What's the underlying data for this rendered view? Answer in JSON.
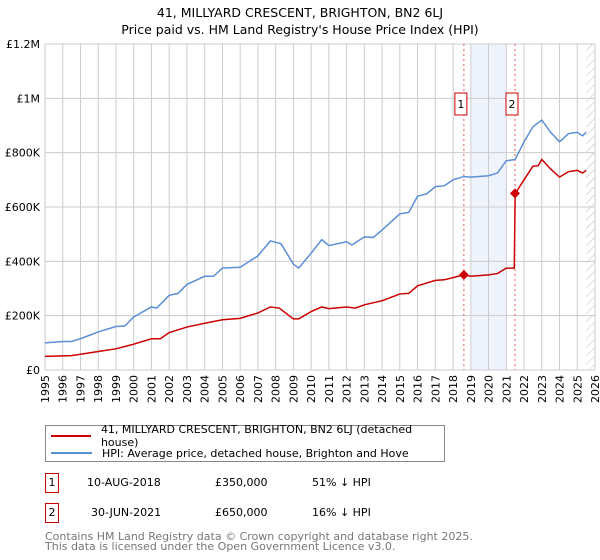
{
  "chart_data": {
    "type": "line",
    "title": "41, MILLYARD CRESCENT, BRIGHTON, BN2 6LJ",
    "subtitle": "Price paid vs. HM Land Registry's House Price Index (HPI)",
    "xlim": [
      1995,
      2026
    ],
    "ylim": [
      0,
      1200000
    ],
    "yticks": [
      {
        "v": 0,
        "label": "£0"
      },
      {
        "v": 200000,
        "label": "£200K"
      },
      {
        "v": 400000,
        "label": "£400K"
      },
      {
        "v": 600000,
        "label": "£600K"
      },
      {
        "v": 800000,
        "label": "£800K"
      },
      {
        "v": 1000000,
        "label": "£1M"
      },
      {
        "v": 1200000,
        "label": "£1.2M"
      }
    ],
    "xticks": [
      "1995",
      "1996",
      "1997",
      "1998",
      "1999",
      "2000",
      "2001",
      "2002",
      "2003",
      "2004",
      "2005",
      "2006",
      "2007",
      "2008",
      "2009",
      "2010",
      "2011",
      "2012",
      "2013",
      "2014",
      "2015",
      "2016",
      "2017",
      "2018",
      "2019",
      "2020",
      "2021",
      "2022",
      "2023",
      "2024",
      "2025",
      "2026"
    ],
    "shaded_range": [
      2019,
      2021
    ],
    "hatched_from": 2025.5,
    "series": [
      {
        "name": "41, MILLYARD CRESCENT, BRIGHTON, BN2 6LJ (detached house)",
        "color": "#cc0000",
        "points": [
          [
            1995,
            50000
          ],
          [
            1996,
            52000
          ],
          [
            1996.5,
            53000
          ],
          [
            1997,
            58000
          ],
          [
            1998,
            68000
          ],
          [
            1999,
            78000
          ],
          [
            2000,
            95000
          ],
          [
            2001,
            115000
          ],
          [
            2001.5,
            115000
          ],
          [
            2002,
            138000
          ],
          [
            2003,
            158000
          ],
          [
            2004,
            172000
          ],
          [
            2005,
            185000
          ],
          [
            2006,
            190000
          ],
          [
            2007,
            210000
          ],
          [
            2007.7,
            232000
          ],
          [
            2008.2,
            228000
          ],
          [
            2009,
            188000
          ],
          [
            2009.3,
            188000
          ],
          [
            2010,
            215000
          ],
          [
            2010.6,
            232000
          ],
          [
            2011,
            226000
          ],
          [
            2012,
            232000
          ],
          [
            2012.5,
            228000
          ],
          [
            2013,
            240000
          ],
          [
            2014,
            255000
          ],
          [
            2015,
            280000
          ],
          [
            2015.5,
            282000
          ],
          [
            2016,
            310000
          ],
          [
            2017,
            330000
          ],
          [
            2017.5,
            332000
          ],
          [
            2018,
            340000
          ],
          [
            2018.6,
            350000
          ],
          [
            2019,
            345000
          ],
          [
            2020,
            350000
          ],
          [
            2020.5,
            355000
          ],
          [
            2021,
            375000
          ],
          [
            2021.45,
            375000
          ],
          [
            2021.5,
            650000
          ],
          [
            2022,
            700000
          ],
          [
            2022.5,
            750000
          ],
          [
            2022.8,
            752000
          ],
          [
            2023,
            775000
          ],
          [
            2023.5,
            740000
          ],
          [
            2024,
            710000
          ],
          [
            2024.5,
            730000
          ],
          [
            2025,
            735000
          ],
          [
            2025.3,
            725000
          ],
          [
            2025.5,
            735000
          ]
        ]
      },
      {
        "name": "HPI: Average price, detached house, Brighton and Hove",
        "color": "#5b8fd4",
        "points": [
          [
            1995,
            100000
          ],
          [
            1996,
            105000
          ],
          [
            1996.5,
            105000
          ],
          [
            1997,
            115000
          ],
          [
            1998,
            140000
          ],
          [
            1999,
            160000
          ],
          [
            1999.5,
            162000
          ],
          [
            2000,
            195000
          ],
          [
            2001,
            232000
          ],
          [
            2001.3,
            228000
          ],
          [
            2002,
            275000
          ],
          [
            2002.5,
            282000
          ],
          [
            2003,
            315000
          ],
          [
            2004,
            345000
          ],
          [
            2004.5,
            345000
          ],
          [
            2005,
            375000
          ],
          [
            2006,
            378000
          ],
          [
            2007,
            420000
          ],
          [
            2007.7,
            475000
          ],
          [
            2008.3,
            465000
          ],
          [
            2009,
            390000
          ],
          [
            2009.3,
            375000
          ],
          [
            2010,
            430000
          ],
          [
            2010.6,
            480000
          ],
          [
            2011,
            458000
          ],
          [
            2012,
            472000
          ],
          [
            2012.3,
            460000
          ],
          [
            2013,
            490000
          ],
          [
            2013.5,
            488000
          ],
          [
            2014,
            515000
          ],
          [
            2015,
            575000
          ],
          [
            2015.5,
            580000
          ],
          [
            2016,
            640000
          ],
          [
            2016.5,
            648000
          ],
          [
            2017,
            675000
          ],
          [
            2017.5,
            678000
          ],
          [
            2018,
            700000
          ],
          [
            2018.6,
            712000
          ],
          [
            2019,
            710000
          ],
          [
            2020,
            715000
          ],
          [
            2020.5,
            725000
          ],
          [
            2021,
            770000
          ],
          [
            2021.5,
            775000
          ],
          [
            2022,
            840000
          ],
          [
            2022.5,
            895000
          ],
          [
            2023,
            920000
          ],
          [
            2023.5,
            875000
          ],
          [
            2024,
            840000
          ],
          [
            2024.5,
            870000
          ],
          [
            2025,
            875000
          ],
          [
            2025.3,
            862000
          ],
          [
            2025.5,
            875000
          ]
        ]
      }
    ],
    "annotations": [
      {
        "label": "1",
        "x": 2018.61,
        "y": 350000
      },
      {
        "label": "2",
        "x": 2021.49,
        "y": 650000
      }
    ]
  },
  "legend": {
    "items": [
      "41, MILLYARD CRESCENT, BRIGHTON, BN2 6LJ (detached house)",
      "HPI: Average price, detached house, Brighton and Hove"
    ]
  },
  "transactions": [
    {
      "num": "1",
      "date": "10-AUG-2018",
      "price": "£350,000",
      "hpi": "51% ↓ HPI"
    },
    {
      "num": "2",
      "date": "30-JUN-2021",
      "price": "£650,000",
      "hpi": "16% ↓ HPI"
    }
  ],
  "footer": {
    "line1": "Contains HM Land Registry data © Crown copyright and database right 2025.",
    "line2": "This data is licensed under the Open Government Licence v3.0."
  }
}
